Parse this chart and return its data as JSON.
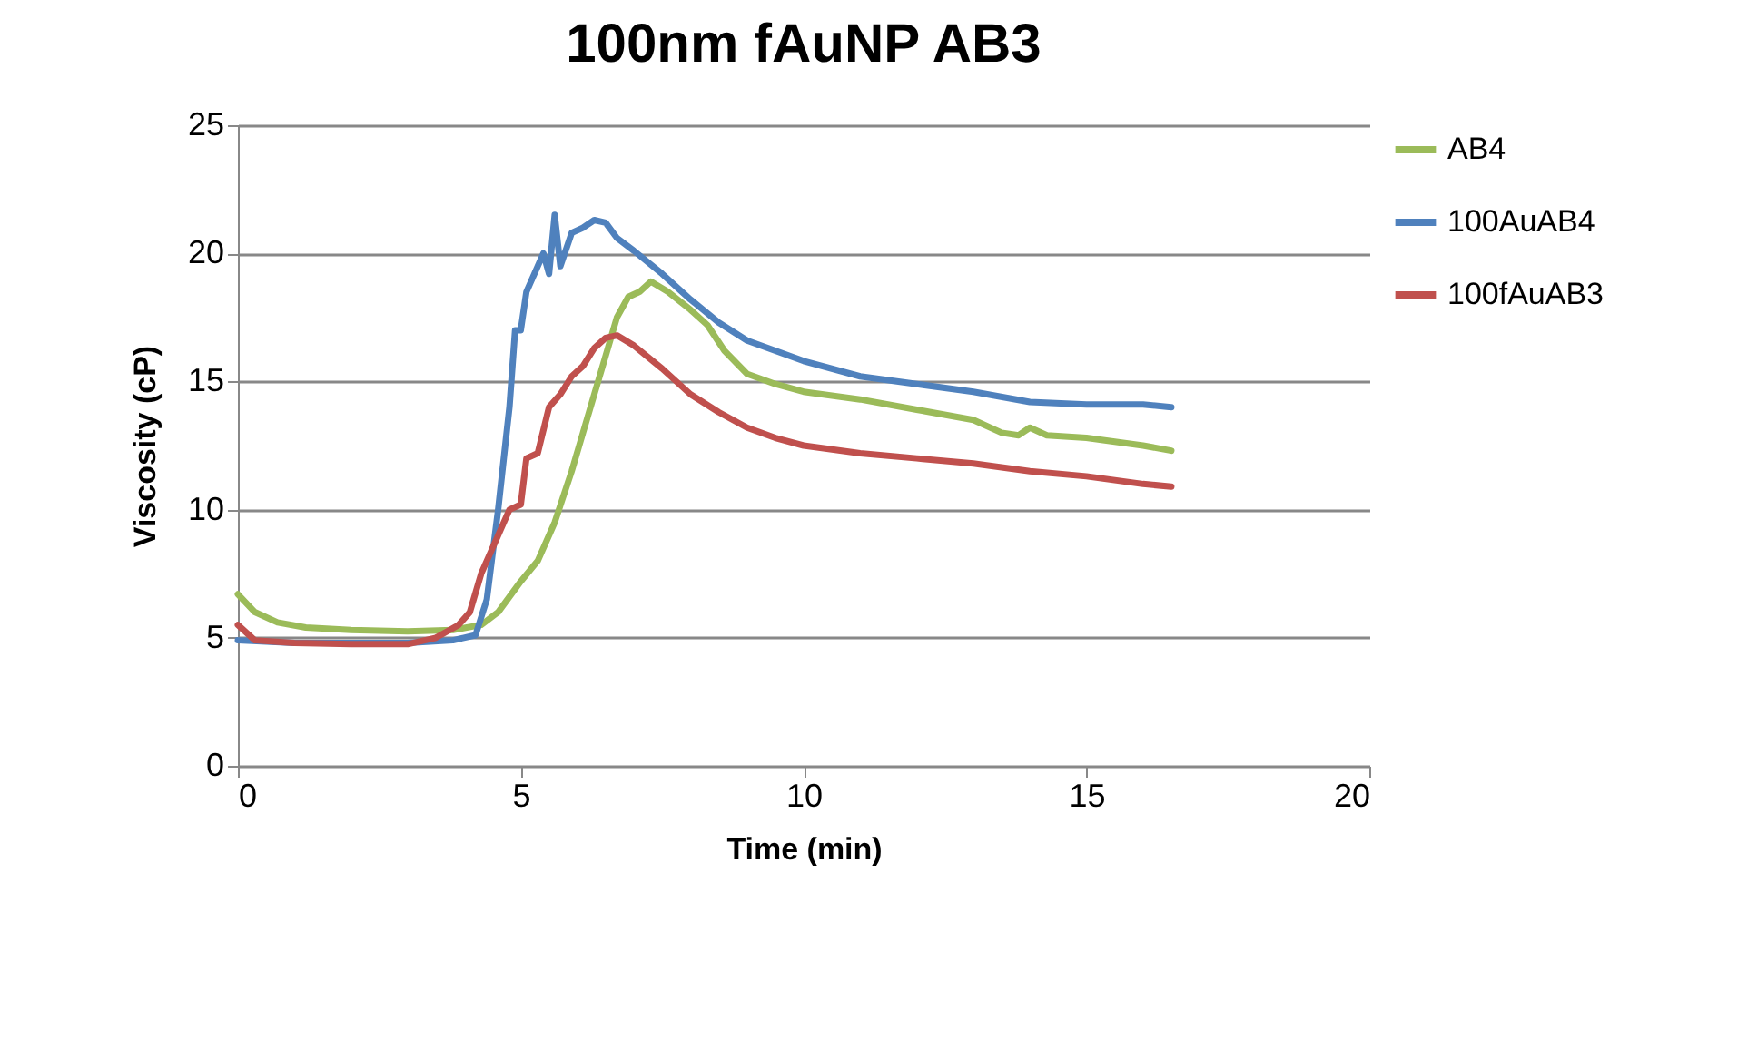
{
  "chart_data": {
    "type": "line",
    "title": "100nm fAuNP AB3",
    "xlabel": "Time (min)",
    "ylabel": "Viscosity (cP)",
    "xlim": [
      0,
      20
    ],
    "xticks": [
      0,
      5,
      10,
      15,
      20
    ],
    "ylim": [
      0,
      25
    ],
    "yticks": [
      0,
      5,
      10,
      15,
      20,
      25
    ],
    "grid": "y",
    "legend": "right",
    "marker": "none",
    "line_style": "solid",
    "series": [
      {
        "name": "AB4",
        "color": "#9bbb59",
        "x": [
          0,
          0.3,
          0.7,
          1.2,
          2,
          3,
          3.8,
          4.3,
          4.6,
          5,
          5.3,
          5.6,
          5.9,
          6.1,
          6.3,
          6.5,
          6.7,
          6.9,
          7.1,
          7.3,
          7.6,
          8,
          8.3,
          8.6,
          9,
          9.5,
          10,
          11,
          12,
          13,
          13.5,
          13.8,
          14,
          14.3,
          15,
          16,
          16.5
        ],
        "values": [
          6.7,
          6.0,
          5.6,
          5.4,
          5.3,
          5.25,
          5.3,
          5.5,
          6.0,
          7.2,
          8.0,
          9.5,
          11.5,
          13,
          14.5,
          16,
          17.5,
          18.3,
          18.5,
          18.9,
          18.5,
          17.8,
          17.2,
          16.2,
          15.3,
          14.9,
          14.6,
          14.3,
          13.9,
          13.5,
          13.0,
          12.9,
          13.2,
          12.9,
          12.8,
          12.5,
          12.3
        ]
      },
      {
        "name": "100AuAB4",
        "color": "#4f81bd",
        "x": [
          0,
          1,
          3,
          3.8,
          4.2,
          4.4,
          4.6,
          4.8,
          4.9,
          5.0,
          5.1,
          5.3,
          5.4,
          5.5,
          5.6,
          5.7,
          5.9,
          6.1,
          6.3,
          6.5,
          6.7,
          7,
          7.5,
          8,
          8.5,
          9,
          10,
          11,
          12,
          13,
          14,
          15,
          16,
          16.5
        ],
        "values": [
          4.9,
          4.8,
          4.8,
          4.9,
          5.1,
          6.5,
          10,
          14,
          17,
          17,
          18.5,
          19.5,
          20,
          19.2,
          21.5,
          19.5,
          20.8,
          21,
          21.3,
          21.2,
          20.6,
          20.1,
          19.2,
          18.2,
          17.3,
          16.6,
          15.8,
          15.2,
          14.9,
          14.6,
          14.2,
          14.1,
          14.1,
          14.0
        ]
      },
      {
        "name": "100fAuAB3",
        "color": "#c0504d",
        "x": [
          0,
          0.3,
          1,
          2,
          3,
          3.5,
          3.9,
          4.1,
          4.3,
          4.6,
          4.8,
          5,
          5.1,
          5.3,
          5.5,
          5.7,
          5.9,
          6.1,
          6.3,
          6.5,
          6.7,
          7,
          7.5,
          8,
          8.5,
          9,
          9.5,
          10,
          11,
          12,
          13,
          14,
          15,
          16,
          16.5
        ],
        "values": [
          5.5,
          4.9,
          4.8,
          4.75,
          4.75,
          5.0,
          5.5,
          6.0,
          7.5,
          9,
          10,
          10.2,
          12,
          12.2,
          14,
          14.5,
          15.2,
          15.6,
          16.3,
          16.7,
          16.8,
          16.4,
          15.5,
          14.5,
          13.8,
          13.2,
          12.8,
          12.5,
          12.2,
          12.0,
          11.8,
          11.5,
          11.3,
          11.0,
          10.9
        ]
      }
    ]
  }
}
